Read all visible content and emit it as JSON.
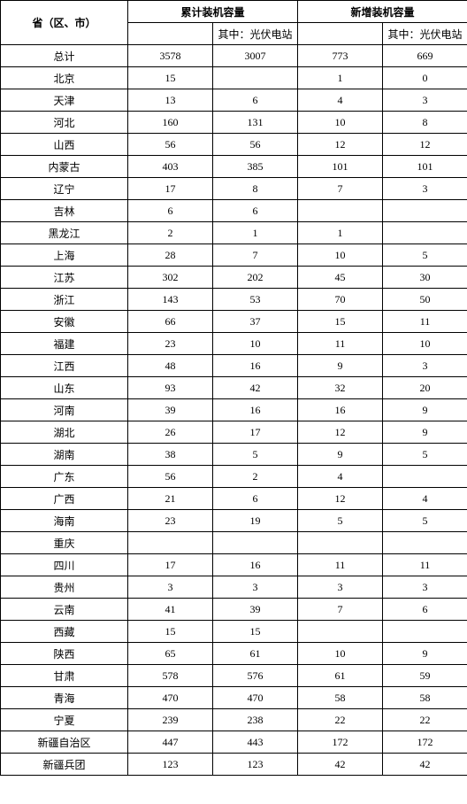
{
  "headers": {
    "province": "省（区、市）",
    "cumulative": "累计装机容量",
    "new": "新增装机容量",
    "sub_pv": "其中：光伏电站",
    "total_label": "总计"
  },
  "totals": {
    "cum_total": "3578",
    "cum_pv": "3007",
    "new_total": "773",
    "new_pv": "669"
  },
  "rows": [
    {
      "name": "北京",
      "ct": "15",
      "cp": "",
      "nt": "1",
      "np": "0"
    },
    {
      "name": "天津",
      "ct": "13",
      "cp": "6",
      "nt": "4",
      "np": "3"
    },
    {
      "name": "河北",
      "ct": "160",
      "cp": "131",
      "nt": "10",
      "np": "8"
    },
    {
      "name": "山西",
      "ct": "56",
      "cp": "56",
      "nt": "12",
      "np": "12"
    },
    {
      "name": "内蒙古",
      "ct": "403",
      "cp": "385",
      "nt": "101",
      "np": "101"
    },
    {
      "name": "辽宁",
      "ct": "17",
      "cp": "8",
      "nt": "7",
      "np": "3"
    },
    {
      "name": "吉林",
      "ct": "6",
      "cp": "6",
      "nt": "",
      "np": ""
    },
    {
      "name": "黑龙江",
      "ct": "2",
      "cp": "1",
      "nt": "1",
      "np": ""
    },
    {
      "name": "上海",
      "ct": "28",
      "cp": "7",
      "nt": "10",
      "np": "5"
    },
    {
      "name": "江苏",
      "ct": "302",
      "cp": "202",
      "nt": "45",
      "np": "30"
    },
    {
      "name": "浙江",
      "ct": "143",
      "cp": "53",
      "nt": "70",
      "np": "50"
    },
    {
      "name": "安徽",
      "ct": "66",
      "cp": "37",
      "nt": "15",
      "np": "11"
    },
    {
      "name": "福建",
      "ct": "23",
      "cp": "10",
      "nt": "11",
      "np": "10"
    },
    {
      "name": "江西",
      "ct": "48",
      "cp": "16",
      "nt": "9",
      "np": "3"
    },
    {
      "name": "山东",
      "ct": "93",
      "cp": "42",
      "nt": "32",
      "np": "20"
    },
    {
      "name": "河南",
      "ct": "39",
      "cp": "16",
      "nt": "16",
      "np": "9"
    },
    {
      "name": "湖北",
      "ct": "26",
      "cp": "17",
      "nt": "12",
      "np": "9"
    },
    {
      "name": "湖南",
      "ct": "38",
      "cp": "5",
      "nt": "9",
      "np": "5"
    },
    {
      "name": "广东",
      "ct": "56",
      "cp": "2",
      "nt": "4",
      "np": ""
    },
    {
      "name": "广西",
      "ct": "21",
      "cp": "6",
      "nt": "12",
      "np": "4"
    },
    {
      "name": "海南",
      "ct": "23",
      "cp": "19",
      "nt": "5",
      "np": "5"
    },
    {
      "name": "重庆",
      "ct": "",
      "cp": "",
      "nt": "",
      "np": ""
    },
    {
      "name": "四川",
      "ct": "17",
      "cp": "16",
      "nt": "11",
      "np": "11"
    },
    {
      "name": "贵州",
      "ct": "3",
      "cp": "3",
      "nt": "3",
      "np": "3"
    },
    {
      "name": "云南",
      "ct": "41",
      "cp": "39",
      "nt": "7",
      "np": "6"
    },
    {
      "name": "西藏",
      "ct": "15",
      "cp": "15",
      "nt": "",
      "np": ""
    },
    {
      "name": "陕西",
      "ct": "65",
      "cp": "61",
      "nt": "10",
      "np": "9"
    },
    {
      "name": "甘肃",
      "ct": "578",
      "cp": "576",
      "nt": "61",
      "np": "59"
    },
    {
      "name": "青海",
      "ct": "470",
      "cp": "470",
      "nt": "58",
      "np": "58"
    },
    {
      "name": "宁夏",
      "ct": "239",
      "cp": "238",
      "nt": "22",
      "np": "22"
    },
    {
      "name": "新疆自治区",
      "ct": "447",
      "cp": "443",
      "nt": "172",
      "np": "172"
    },
    {
      "name": "新疆兵团",
      "ct": "123",
      "cp": "123",
      "nt": "42",
      "np": "42"
    }
  ]
}
